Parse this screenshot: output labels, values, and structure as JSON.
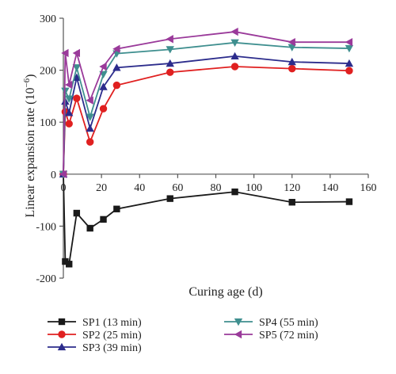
{
  "chart_data": {
    "type": "line",
    "title": "",
    "xlabel": "Curing age (d)",
    "ylabel_main": "Linear expansion rate (10",
    "ylabel_exp": "−6",
    "ylabel_tail": ")",
    "xlim": [
      0,
      160
    ],
    "ylim": [
      -200,
      300
    ],
    "xticks": [
      0,
      20,
      40,
      60,
      80,
      100,
      120,
      140,
      160
    ],
    "yticks": [
      -200,
      -100,
      0,
      100,
      200,
      300
    ],
    "grid": false,
    "legend_position": "bottom",
    "series": [
      {
        "name": "SP1 (13 min)",
        "color": "#1a1a1a",
        "marker": "square",
        "x": [
          0,
          1,
          3,
          7,
          14,
          21,
          28,
          56,
          90,
          120,
          150
        ],
        "y": [
          0,
          -168,
          -173,
          -75,
          -104,
          -87,
          -67,
          -47,
          -34,
          -54,
          -53
        ]
      },
      {
        "name": "SP2 (25 min)",
        "color": "#e02020",
        "marker": "circle",
        "x": [
          0,
          1,
          3,
          7,
          14,
          21,
          28,
          56,
          90,
          120,
          150
        ],
        "y": [
          0,
          120,
          97,
          146,
          62,
          126,
          171,
          196,
          207,
          203,
          199
        ]
      },
      {
        "name": "SP3 (39 min)",
        "color": "#2c2c8c",
        "marker": "triangle-up",
        "x": [
          0,
          1,
          3,
          7,
          14,
          21,
          28,
          56,
          90,
          120,
          150
        ],
        "y": [
          0,
          140,
          118,
          186,
          88,
          168,
          205,
          213,
          227,
          216,
          213
        ]
      },
      {
        "name": "SP4 (55 min)",
        "color": "#3f8f8f",
        "marker": "triangle-down",
        "x": [
          0,
          1,
          3,
          7,
          14,
          21,
          28,
          56,
          90,
          120,
          150
        ],
        "y": [
          0,
          160,
          145,
          205,
          110,
          192,
          232,
          240,
          253,
          244,
          242
        ]
      },
      {
        "name": "SP5 (72 min)",
        "color": "#9a3a9a",
        "marker": "triangle-left",
        "x": [
          0,
          1,
          3,
          7,
          14,
          21,
          28,
          56,
          90,
          120,
          150
        ],
        "y": [
          0,
          233,
          172,
          233,
          142,
          207,
          241,
          260,
          274,
          254,
          254
        ]
      }
    ]
  }
}
